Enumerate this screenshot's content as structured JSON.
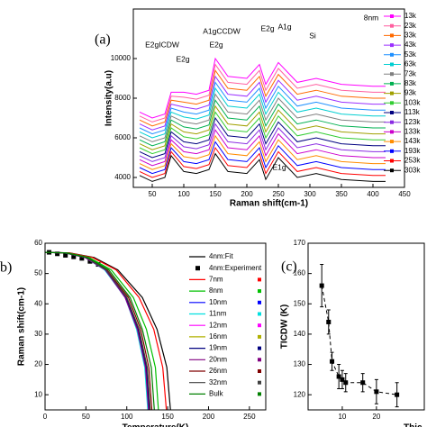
{
  "chart_data": [
    {
      "type": "line",
      "panel_label": "(a)",
      "xlabel": "Raman shift(cm-1)",
      "ylabel": "Intensity(a.u)",
      "annotations": [
        "E2gICDW",
        "E2g",
        "A1gCCDW",
        "E2g",
        "E2g",
        "A1g",
        "Si",
        "E1g",
        "8nm"
      ],
      "x": [
        30,
        50,
        70,
        80,
        100,
        120,
        140,
        150,
        170,
        200,
        220,
        230,
        250,
        280,
        310,
        350,
        400,
        420
      ],
      "xlim": [
        20,
        450
      ],
      "xticks": [
        50,
        100,
        150,
        200,
        250,
        300,
        350,
        400,
        450
      ],
      "ylim": [
        3500,
        12500
      ],
      "yticks": [
        4000,
        6000,
        8000,
        10000
      ],
      "series": [
        {
          "name": "13k",
          "color": "#ff00ff",
          "values": [
            7300,
            7000,
            7200,
            8300,
            8300,
            8200,
            8400,
            10000,
            9100,
            9000,
            9700,
            8700,
            9800,
            8800,
            9000,
            8700,
            8600,
            8600
          ]
        },
        {
          "name": "23k",
          "color": "#ff5fa0",
          "values": [
            7100,
            6800,
            7000,
            8100,
            8050,
            7950,
            8150,
            9700,
            8800,
            8700,
            9400,
            8400,
            9500,
            8500,
            8700,
            8400,
            8300,
            8300
          ]
        },
        {
          "name": "33k",
          "color": "#ff6a00",
          "values": [
            6900,
            6600,
            6800,
            7900,
            7800,
            7700,
            7900,
            9400,
            8500,
            8400,
            9100,
            8100,
            9200,
            8200,
            8400,
            8100,
            8000,
            8000
          ]
        },
        {
          "name": "43k",
          "color": "#9b30ff",
          "values": [
            6700,
            6400,
            6600,
            7700,
            7550,
            7450,
            7650,
            9100,
            8200,
            8100,
            8800,
            7800,
            8900,
            7900,
            8100,
            7800,
            7700,
            7700
          ]
        },
        {
          "name": "53k",
          "color": "#1e90ff",
          "values": [
            6500,
            6200,
            6400,
            7500,
            7300,
            7200,
            7400,
            8800,
            7900,
            7800,
            8500,
            7500,
            8600,
            7600,
            7800,
            7500,
            7400,
            7400
          ]
        },
        {
          "name": "63k",
          "color": "#00ced1",
          "values": [
            6300,
            6000,
            6200,
            7300,
            7050,
            6950,
            7150,
            8500,
            7600,
            7500,
            8200,
            7200,
            8300,
            7300,
            7500,
            7200,
            7100,
            7100
          ]
        },
        {
          "name": "73k",
          "color": "#808080",
          "values": [
            6100,
            5800,
            6000,
            7100,
            6800,
            6700,
            6900,
            8200,
            7300,
            7200,
            7900,
            6900,
            8000,
            7000,
            7200,
            6900,
            6800,
            6800
          ]
        },
        {
          "name": "83k",
          "color": "#00b050",
          "values": [
            5900,
            5600,
            5800,
            6900,
            6550,
            6450,
            6650,
            7900,
            7000,
            6900,
            7600,
            6600,
            7700,
            6700,
            6900,
            6600,
            6500,
            6500
          ]
        },
        {
          "name": "93k",
          "color": "#a0a000",
          "values": [
            5700,
            5400,
            5600,
            6700,
            6300,
            6200,
            6400,
            7600,
            6700,
            6600,
            7300,
            6300,
            7400,
            6400,
            6600,
            6300,
            6200,
            6200
          ]
        },
        {
          "name": "103k",
          "color": "#32cd32",
          "values": [
            5500,
            5200,
            5400,
            6500,
            6050,
            5950,
            6150,
            7300,
            6400,
            6300,
            7000,
            6000,
            7100,
            6100,
            6300,
            6000,
            5900,
            5900
          ]
        },
        {
          "name": "113k",
          "color": "#000080",
          "values": [
            5300,
            5000,
            5200,
            6300,
            5800,
            5700,
            5900,
            7000,
            6100,
            6000,
            6700,
            5700,
            6800,
            5800,
            6000,
            5700,
            5600,
            5600
          ]
        },
        {
          "name": "123k",
          "color": "#8a2be2",
          "values": [
            5100,
            4800,
            5000,
            6100,
            5550,
            5450,
            5650,
            6700,
            5800,
            5700,
            6400,
            5400,
            6500,
            5500,
            5700,
            5400,
            5300,
            5300
          ]
        },
        {
          "name": "133k",
          "color": "#cc00cc",
          "values": [
            4900,
            4600,
            4800,
            5900,
            5300,
            5200,
            5400,
            6400,
            5500,
            5400,
            6100,
            5100,
            6200,
            5200,
            5400,
            5100,
            5000,
            5000
          ]
        },
        {
          "name": "143k",
          "color": "#ff8c00",
          "values": [
            4700,
            4400,
            4600,
            5700,
            5050,
            4950,
            5150,
            6100,
            5200,
            5100,
            5800,
            4800,
            5900,
            4900,
            5100,
            4800,
            4700,
            4700
          ]
        },
        {
          "name": "193k",
          "color": "#0000ff",
          "values": [
            4500,
            4200,
            4400,
            5500,
            4800,
            4700,
            4900,
            5800,
            4900,
            4800,
            5500,
            4500,
            5600,
            4600,
            4800,
            4500,
            4400,
            4400
          ]
        },
        {
          "name": "253k",
          "color": "#ff0000",
          "values": [
            4300,
            4000,
            4200,
            5300,
            4550,
            4450,
            4650,
            5500,
            4600,
            4500,
            5200,
            4200,
            5300,
            4300,
            4500,
            4200,
            4100,
            4100
          ]
        },
        {
          "name": "303k",
          "color": "#000000",
          "values": [
            4100,
            3800,
            4000,
            5100,
            4300,
            4200,
            4400,
            5200,
            4300,
            4200,
            4900,
            3900,
            5000,
            4000,
            4200,
            3900,
            3800,
            3800
          ]
        }
      ]
    },
    {
      "type": "curves",
      "panel_label": "b)",
      "xlabel": "Temperature(K)",
      "ylabel": "Raman shift(cm-1)",
      "xlim": [
        0,
        270
      ],
      "xticks": [
        0,
        50,
        100,
        150,
        200,
        250
      ],
      "ylim": [
        5,
        60
      ],
      "yticks": [
        10,
        20,
        30,
        40,
        50,
        60
      ],
      "series": [
        {
          "name": "4nm:Fit",
          "color": "#000000",
          "mode": "line",
          "x": [
            0,
            30,
            60,
            89,
            119,
            137,
            149,
            155
          ],
          "values": [
            57,
            56.8,
            55.3,
            51.2,
            42.1,
            31.6,
            19,
            0
          ]
        },
        {
          "name": "4nm:Experiment",
          "color": "#000000",
          "mode": "marker",
          "x": [
            5,
            15,
            25,
            35,
            45,
            55,
            65
          ],
          "values": [
            57,
            56.5,
            56,
            55.5,
            55,
            54,
            53
          ]
        },
        {
          "name": "7nm",
          "color": "#ff0000",
          "mode": "line",
          "x": [
            0,
            29,
            58,
            87,
            115,
            133,
            144,
            150
          ],
          "values": [
            57,
            56.8,
            55.3,
            51.2,
            42.1,
            31.6,
            19,
            0
          ]
        },
        {
          "name": "8nm",
          "color": "#00c000",
          "mode": "line",
          "x": [
            0,
            27,
            54,
            81,
            108,
            124,
            135,
            140
          ],
          "values": [
            57,
            56.8,
            55.3,
            51.2,
            42.1,
            31.6,
            19,
            0
          ]
        },
        {
          "name": "10nm",
          "color": "#0000ff",
          "mode": "line",
          "x": [
            0,
            25,
            49,
            74,
            98,
            113,
            123,
            128
          ],
          "values": [
            57,
            56.8,
            55.3,
            51.2,
            42.1,
            31.6,
            19,
            0
          ]
        },
        {
          "name": "11nm",
          "color": "#00e0e0",
          "mode": "line",
          "x": [
            0,
            24,
            49,
            73,
            98,
            112,
            122,
            127
          ],
          "values": [
            57,
            56.8,
            55.3,
            51.2,
            42.1,
            31.6,
            19,
            0
          ]
        },
        {
          "name": "12nm",
          "color": "#ff00ff",
          "mode": "line",
          "x": [
            0,
            25,
            49,
            74,
            98,
            113,
            123,
            128
          ],
          "values": [
            57,
            56.8,
            55.3,
            51.2,
            42.1,
            31.6,
            19,
            0
          ]
        },
        {
          "name": "16nm",
          "color": "#b0b000",
          "mode": "line",
          "x": [
            0,
            25,
            50,
            75,
            100,
            115,
            125,
            130
          ],
          "values": [
            57,
            56.8,
            55.3,
            51.2,
            42.1,
            31.6,
            19,
            0
          ]
        },
        {
          "name": "19nm",
          "color": "#000080",
          "mode": "line",
          "x": [
            0,
            25,
            50,
            74,
            99,
            114,
            124,
            129
          ],
          "values": [
            57,
            56.8,
            55.3,
            51.2,
            42.1,
            31.6,
            19,
            0
          ]
        },
        {
          "name": "20nm",
          "color": "#800080",
          "mode": "line",
          "x": [
            0,
            25,
            49,
            74,
            98,
            113,
            123,
            128
          ],
          "values": [
            57,
            56.8,
            55.3,
            51.2,
            42.1,
            31.6,
            19,
            0
          ]
        },
        {
          "name": "26nm",
          "color": "#800000",
          "mode": "line",
          "x": [
            0,
            25,
            51,
            76,
            102,
            117,
            127,
            132
          ],
          "values": [
            57,
            56.8,
            55.3,
            51.2,
            42.1,
            31.6,
            19,
            0
          ]
        },
        {
          "name": "32nm",
          "color": "#404040",
          "mode": "line",
          "x": [
            0,
            25,
            50,
            75,
            100,
            115,
            125,
            130
          ],
          "values": [
            57,
            56.8,
            55.3,
            51.2,
            42.1,
            31.6,
            19,
            0
          ]
        },
        {
          "name": "Bulk",
          "color": "#008000",
          "mode": "line",
          "x": [
            0,
            26,
            52,
            78,
            104,
            119,
            130,
            135
          ],
          "values": [
            57,
            56.8,
            55.3,
            51.2,
            42.1,
            31.6,
            19,
            0
          ]
        }
      ]
    },
    {
      "type": "errorbar",
      "panel_label": "(c)",
      "xlabel": "Thic",
      "ylabel": "TICDW (K)",
      "xlim": [
        0,
        34
      ],
      "xticks": [
        10,
        20
      ],
      "ylim": [
        115,
        170
      ],
      "yticks": [
        120,
        130,
        140,
        150,
        160,
        170
      ],
      "color": "#000000",
      "x": [
        4,
        6,
        7,
        9,
        10,
        11,
        16,
        20,
        26
      ],
      "values": [
        156,
        144,
        131,
        126,
        125,
        124,
        124,
        121,
        120
      ],
      "errors": [
        7,
        4,
        3,
        4,
        3,
        3,
        3,
        4,
        4
      ]
    }
  ]
}
